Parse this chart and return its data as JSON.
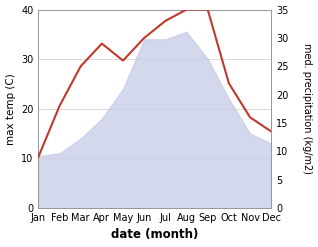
{
  "months": [
    "Jan",
    "Feb",
    "Mar",
    "Apr",
    "May",
    "Jun",
    "Jul",
    "Aug",
    "Sep",
    "Oct",
    "Nov",
    "Dec"
  ],
  "temp": [
    10.5,
    11.0,
    14.0,
    18.0,
    24.0,
    34.0,
    34.0,
    35.5,
    30.0,
    22.0,
    15.0,
    13.0
  ],
  "precip": [
    9.0,
    18.0,
    25.0,
    29.0,
    26.0,
    30.0,
    33.0,
    35.0,
    35.0,
    22.0,
    16.0,
    13.5
  ],
  "precip_color": "#c0392b",
  "fill_color": "#c5cce8",
  "fill_alpha": 0.75,
  "temp_ylim": [
    0,
    40
  ],
  "precip_ylim": [
    0,
    35
  ],
  "temp_yticks": [
    0,
    10,
    20,
    30,
    40
  ],
  "precip_yticks": [
    0,
    5,
    10,
    15,
    20,
    25,
    30,
    35
  ],
  "xlabel": "date (month)",
  "ylabel_left": "max temp (C)",
  "ylabel_right": "med. precipitation (kg/m2)",
  "bg_color": "#ffffff",
  "grid_color": "#cccccc",
  "spine_color": "#999999"
}
